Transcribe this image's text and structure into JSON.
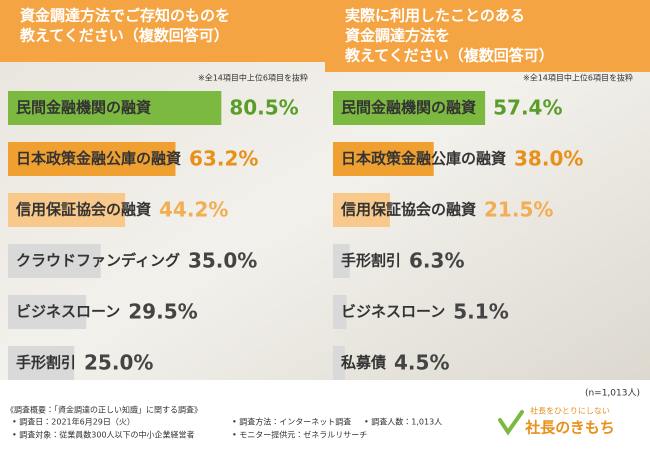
{
  "chart_data": [
    {
      "type": "bar",
      "orientation": "horizontal",
      "title": [
        "資金調達方法でご存知のものを",
        "教えてください（複数回答可）"
      ],
      "note": "※全14項目中上位6項目を抜粋",
      "categories": [
        "民間金融機関の融資",
        "日本政策金融公庫の融資",
        "信用保証協会の融資",
        "クラウドファンディング",
        "ビジネスローン",
        "手形割引"
      ],
      "values": [
        80.5,
        63.2,
        44.2,
        35.0,
        29.5,
        25.0
      ],
      "value_labels": [
        "80.5%",
        "63.2%",
        "44.2%",
        "35.0%",
        "29.5%",
        "25.0%"
      ],
      "colors": [
        "#7cb940",
        "#f0a030",
        "#f8c98a",
        "#d9d9d9",
        "#d9d9d9",
        "#d9d9d9"
      ]
    },
    {
      "type": "bar",
      "orientation": "horizontal",
      "title": [
        "実際に利用したことのある",
        "資金調達方法を",
        "教えてください（複数回答可）"
      ],
      "note": "※全14項目中上位6項目を抜粋",
      "categories": [
        "民間金融機関の融資",
        "日本政策金融公庫の融資",
        "信用保証協会の融資",
        "手形割引",
        "ビジネスローン",
        "私募債"
      ],
      "values": [
        57.4,
        38.0,
        21.5,
        6.3,
        5.1,
        4.5
      ],
      "value_labels": [
        "57.4%",
        "38.0%",
        "21.5%",
        "6.3%",
        "5.1%",
        "4.5%"
      ],
      "colors": [
        "#7cb940",
        "#f0a030",
        "#f8c98a",
        "#d9d9d9",
        "#d9d9d9",
        "#d9d9d9"
      ],
      "annotation": "(n=1,013人)"
    }
  ],
  "footer": {
    "heading": "《調査概要：「資金調達の正しい知識」に関する調査》",
    "items": [
      "• 調査日：2021年6月29日（火）",
      "• 調査対象：従業員数300人以下の中小企業経営者",
      "• 調査方法：インターネット調査",
      "• 調査人数：1,013人",
      "• モニター提供元：ゼネラルリサーチ"
    ],
    "logo_tagline": "社長をひとりにしない",
    "logo": "社長のきもち"
  }
}
